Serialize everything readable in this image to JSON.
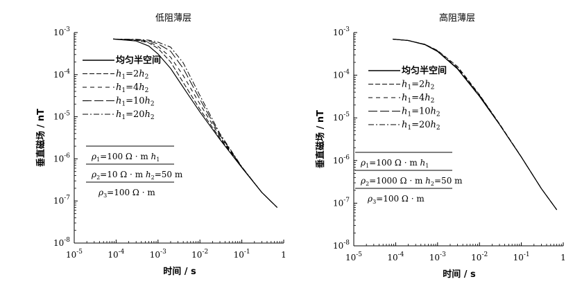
{
  "chart_data": [
    {
      "type": "line",
      "title": "低阻薄层",
      "xlabel": "时间 / s",
      "ylabel": "垂直磁场 / nT",
      "xscale": "log",
      "yscale": "log",
      "xlim": [
        1e-05,
        1
      ],
      "ylim": [
        1e-08,
        0.001
      ],
      "x_ticks": [
        {
          "value": 1e-05,
          "base": "10",
          "exp": "-5"
        },
        {
          "value": 0.0001,
          "base": "10",
          "exp": "-4"
        },
        {
          "value": 0.001,
          "base": "10",
          "exp": "-3"
        },
        {
          "value": 0.01,
          "base": "10",
          "exp": "-2"
        },
        {
          "value": 0.1,
          "base": "10",
          "exp": "-1"
        },
        {
          "value": 1,
          "base": "1",
          "exp": ""
        }
      ],
      "y_ticks": [
        {
          "value": 1e-08,
          "base": "10",
          "exp": "-8"
        },
        {
          "value": 1e-07,
          "base": "10",
          "exp": "-7"
        },
        {
          "value": 1e-06,
          "base": "10",
          "exp": "-6"
        },
        {
          "value": 1e-05,
          "base": "10",
          "exp": "-5"
        },
        {
          "value": 0.0001,
          "base": "10",
          "exp": "-4"
        },
        {
          "value": 0.001,
          "base": "10",
          "exp": "-3"
        }
      ],
      "legend_position": "upper-left",
      "series": [
        {
          "name": "均匀半空间",
          "dash": "solid",
          "x": [
            8.5e-05,
            0.0003,
            0.0006,
            0.001,
            0.002,
            0.005,
            0.01,
            0.03,
            0.1,
            0.3,
            0.7
          ],
          "y": [
            0.0007,
            0.00063,
            0.00048,
            0.00031,
            0.00014,
            3.6e-05,
            1.3e-05,
            2.9e-06,
            6.2e-07,
            1.6e-07,
            7e-08
          ]
        },
        {
          "name_parts": [
            "h",
            "1",
            "=2",
            "h",
            "2"
          ],
          "dash": "dash",
          "x": [
            8.5e-05,
            0.0003,
            0.0006,
            0.001,
            0.002,
            0.004,
            0.01,
            0.03,
            0.1,
            0.3,
            0.7
          ],
          "y": [
            0.0007,
            0.00066,
            0.00057,
            0.00042,
            0.0002,
            6.5e-05,
            1.5e-05,
            3.1e-06,
            6.2e-07,
            1.6e-07,
            7e-08
          ]
        },
        {
          "name_parts": [
            "h",
            "1",
            "=4",
            "h",
            "2"
          ],
          "dash": "dash-wide",
          "x": [
            8.5e-05,
            0.0003,
            0.0006,
            0.001,
            0.002,
            0.004,
            0.01,
            0.03,
            0.1,
            0.3,
            0.7
          ],
          "y": [
            0.0007,
            0.00067,
            0.0006,
            0.00047,
            0.00026,
            9.5e-05,
            2e-05,
            3.4e-06,
            6.3e-07,
            1.6e-07,
            7e-08
          ]
        },
        {
          "name_parts": [
            "h",
            "1",
            "=10",
            "h",
            "2"
          ],
          "dash": "long-dash",
          "x": [
            8.5e-05,
            0.0003,
            0.0006,
            0.001,
            0.002,
            0.004,
            0.01,
            0.03,
            0.1,
            0.3,
            0.7
          ],
          "y": [
            0.0007,
            0.00068,
            0.00063,
            0.00054,
            0.00036,
            0.00014,
            2.6e-05,
            3.7e-06,
            6.4e-07,
            1.6e-07,
            7e-08
          ]
        },
        {
          "name_parts": [
            "h",
            "1",
            "=20",
            "h",
            "2"
          ],
          "dash": "dash-dot",
          "x": [
            8.5e-05,
            0.0003,
            0.0006,
            0.001,
            0.002,
            0.004,
            0.01,
            0.03,
            0.1,
            0.3,
            0.7
          ],
          "y": [
            0.0007,
            0.00069,
            0.00066,
            0.00059,
            0.00045,
            0.00019,
            3.2e-05,
            4e-06,
            6.5e-07,
            1.6e-07,
            7e-08
          ]
        }
      ],
      "model_box": {
        "rows": [
          {
            "sym": "ρ",
            "sub": "1",
            "text": "=100 Ω · m",
            "extra": "h",
            "extra_sub": "1"
          },
          {
            "sym": "ρ",
            "sub": "2",
            "text": "=10 Ω · m",
            "extra": "h",
            "extra_sub": "2",
            "extra_text": "=50 m"
          },
          {
            "sym": "ρ",
            "sub": "3",
            "text": "=100 Ω · m",
            "extra": "",
            "extra_sub": ""
          }
        ]
      }
    },
    {
      "type": "line",
      "title": "高阻薄层",
      "xlabel": "时间 / s",
      "ylabel": "垂直磁场 / nT",
      "xscale": "log",
      "yscale": "log",
      "xlim": [
        1e-05,
        1
      ],
      "ylim": [
        1e-08,
        0.001
      ],
      "x_ticks": [
        {
          "value": 1e-05,
          "base": "10",
          "exp": "-5"
        },
        {
          "value": 0.0001,
          "base": "10",
          "exp": "-4"
        },
        {
          "value": 0.001,
          "base": "10",
          "exp": "-3"
        },
        {
          "value": 0.01,
          "base": "10",
          "exp": "-2"
        },
        {
          "value": 0.1,
          "base": "10",
          "exp": "-1"
        },
        {
          "value": 1,
          "base": "1",
          "exp": ""
        }
      ],
      "y_ticks": [
        {
          "value": 1e-08,
          "base": "10",
          "exp": "-8"
        },
        {
          "value": 1e-07,
          "base": "10",
          "exp": "-7"
        },
        {
          "value": 1e-06,
          "base": "10",
          "exp": "-6"
        },
        {
          "value": 1e-05,
          "base": "10",
          "exp": "-5"
        },
        {
          "value": 0.0001,
          "base": "10",
          "exp": "-4"
        },
        {
          "value": 0.001,
          "base": "10",
          "exp": "-3"
        }
      ],
      "legend_position": "upper-left",
      "series": [
        {
          "name": "均匀半空间",
          "dash": "solid",
          "x": [
            8.5e-05,
            0.0002,
            0.0005,
            0.001,
            0.003,
            0.01,
            0.03,
            0.1,
            0.3,
            0.7
          ],
          "y": [
            0.0007,
            0.00065,
            0.00052,
            0.00036,
            0.00014,
            3.2e-05,
            7e-06,
            1.2e-06,
            2.2e-07,
            7e-08
          ]
        },
        {
          "name_parts": [
            "h",
            "1",
            "=2",
            "h",
            "2"
          ],
          "dash": "dash",
          "x": [
            8.5e-05,
            0.0002,
            0.0005,
            0.001,
            0.003,
            0.01,
            0.03,
            0.1,
            0.3,
            0.7
          ],
          "y": [
            0.0007,
            0.00065,
            0.00053,
            0.00038,
            0.00016,
            3.5e-05,
            7.3e-06,
            1.22e-06,
            2.2e-07,
            7e-08
          ]
        },
        {
          "name_parts": [
            "h",
            "1",
            "=4",
            "h",
            "2"
          ],
          "dash": "dash-wide",
          "x": [
            8.5e-05,
            0.0002,
            0.0005,
            0.001,
            0.003,
            0.01,
            0.03,
            0.1,
            0.3,
            0.7
          ],
          "y": [
            0.0007,
            0.00065,
            0.00053,
            0.00037,
            0.00015,
            3.4e-05,
            7.2e-06,
            1.21e-06,
            2.2e-07,
            7e-08
          ]
        },
        {
          "name_parts": [
            "h",
            "1",
            "=10",
            "h",
            "2"
          ],
          "dash": "long-dash",
          "x": [
            8.5e-05,
            0.0002,
            0.0005,
            0.001,
            0.003,
            0.01,
            0.03,
            0.1,
            0.3,
            0.7
          ],
          "y": [
            0.0007,
            0.00065,
            0.00052,
            0.00036,
            0.000145,
            3.3e-05,
            7.1e-06,
            1.2e-06,
            2.2e-07,
            7e-08
          ]
        },
        {
          "name_parts": [
            "h",
            "1",
            "=20",
            "h",
            "2"
          ],
          "dash": "dash-dot",
          "x": [
            8.5e-05,
            0.0002,
            0.0005,
            0.001,
            0.003,
            0.01,
            0.03,
            0.1,
            0.3,
            0.7
          ],
          "y": [
            0.0007,
            0.00065,
            0.00052,
            0.00036,
            0.00014,
            3.2e-05,
            7e-06,
            1.2e-06,
            2.2e-07,
            7e-08
          ]
        }
      ],
      "model_box": {
        "rows": [
          {
            "sym": "ρ",
            "sub": "1",
            "text": "=100 Ω · m",
            "extra": "h",
            "extra_sub": "1"
          },
          {
            "sym": "ρ",
            "sub": "2",
            "text": "=1000 Ω · m",
            "extra": "h",
            "extra_sub": "2",
            "extra_text": "=50 m"
          },
          {
            "sym": "ρ",
            "sub": "3",
            "text": "=100 Ω · m",
            "extra": "",
            "extra_sub": ""
          }
        ]
      }
    }
  ]
}
